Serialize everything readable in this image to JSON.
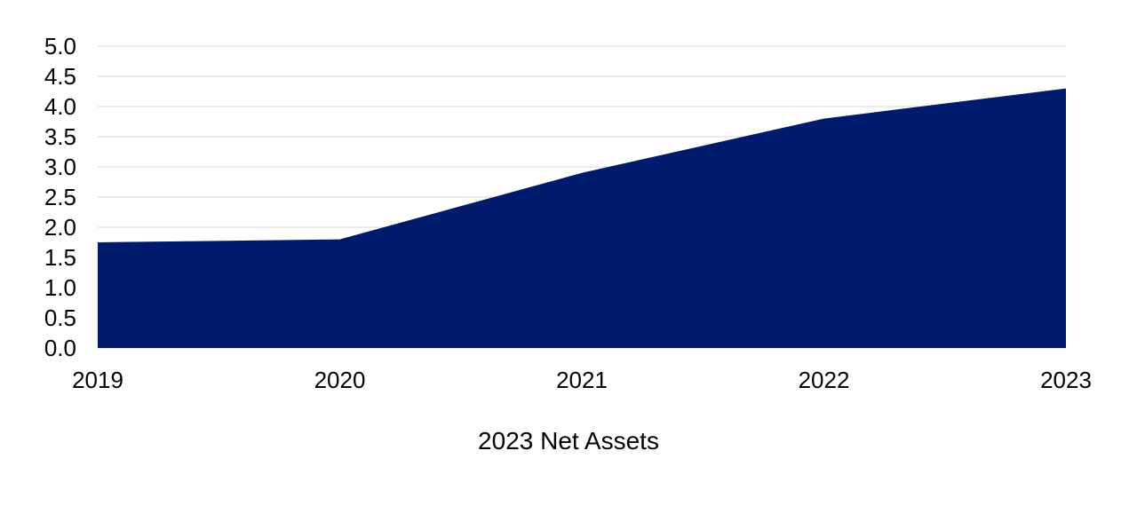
{
  "chart_data": {
    "type": "area",
    "title": "",
    "caption": "2023 Net Assets",
    "xlabel": "",
    "ylabel": "",
    "categories": [
      "2019",
      "2020",
      "2021",
      "2022",
      "2023"
    ],
    "series": [
      {
        "values": [
          1.75,
          1.8,
          2.9,
          3.8,
          4.3
        ]
      }
    ],
    "y_ticks": [
      "0.0",
      "0.5",
      "1.0",
      "1.5",
      "2.0",
      "2.5",
      "3.0",
      "3.5",
      "4.0",
      "4.5",
      "5.0"
    ],
    "ylim": [
      0,
      5
    ],
    "grid": true,
    "legend": "none",
    "colors": {
      "fill": "#001a6e",
      "grid": "#d9d9d9",
      "text": "#000000"
    }
  }
}
